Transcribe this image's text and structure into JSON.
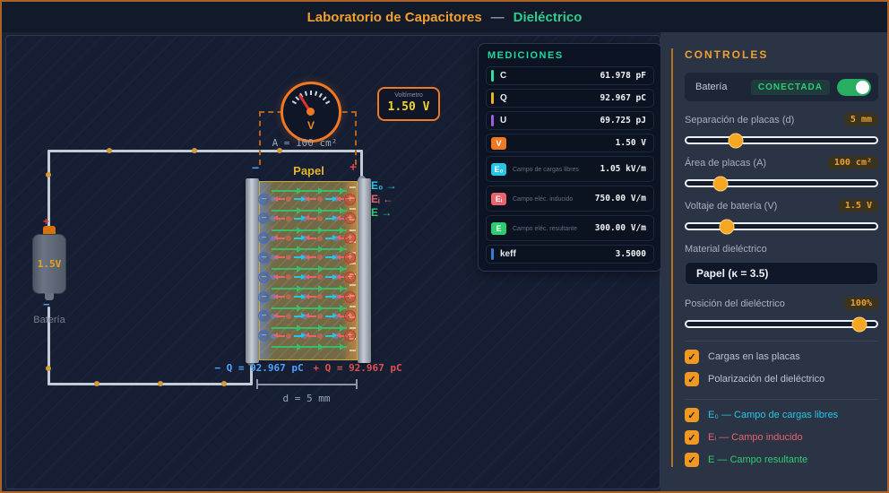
{
  "header": {
    "title_main": "Laboratorio de Capacitores",
    "separator": "—",
    "title_accent": "Dieléctrico"
  },
  "canvas": {
    "voltmeter": {
      "label": "Voltímetro",
      "value": "1.50 V",
      "gauge_label": "V"
    },
    "area_label": "A = 100 cm²",
    "dielectric_label": "Papel",
    "legend": [
      {
        "text": "E₀ →",
        "color": "#29c5e6"
      },
      {
        "text": "Eᵢ ←",
        "color": "#e8636e"
      },
      {
        "text": "E →",
        "color": "#2ecc71"
      }
    ],
    "battery": {
      "value": "1.5V",
      "label": "Batería",
      "plus": "+",
      "minus": "−"
    },
    "plate_signs": {
      "neg": "−",
      "pos": "+"
    },
    "charge_labels": {
      "neg": "− Q = 92.967 pC",
      "pos": "+ Q = 92.967 pC"
    },
    "distance_label": "d = 5 mm",
    "plate_charges_per_side": 8,
    "dipole_rows": 8,
    "field_lines": 9,
    "induced_dashes": 16
  },
  "measurements": {
    "title": "MEDICIONES",
    "rows": [
      {
        "label": "C",
        "value": "61.978 pF",
        "accent": "#2de0a0",
        "style": "bracket"
      },
      {
        "label": "Q",
        "value": "92.967 pC",
        "accent": "#e6b820",
        "style": "bracket"
      },
      {
        "label": "U",
        "value": "69.725 pJ",
        "accent": "#a05ce6",
        "style": "bracket"
      },
      {
        "label": "V",
        "value": "1.50 V",
        "accent": "#f07820",
        "style": "badge"
      },
      {
        "label": "E₀",
        "sub": "Campo de cargas libres",
        "value": "1.05 kV/m",
        "accent": "#29c5e6",
        "style": "badge"
      },
      {
        "label": "Eᵢ",
        "sub": "Campo eléc. inducido",
        "value": "750.00 V/m",
        "accent": "#e8636e",
        "style": "badge"
      },
      {
        "label": "E",
        "sub": "Campo eléc. resultante",
        "value": "300.00 V/m",
        "accent": "#2ecc71",
        "style": "badge"
      },
      {
        "label": "keff",
        "value": "3.5000",
        "accent": "#3a7bd5",
        "style": "bracket"
      }
    ]
  },
  "controls": {
    "title": "CONTROLES",
    "battery_row": {
      "label": "Batería",
      "status": "CONECTADA",
      "toggle_on": true
    },
    "sliders": [
      {
        "label": "Separación de placas (d)",
        "value": "5 mm",
        "percent": 26
      },
      {
        "label": "Área de placas (A)",
        "value": "100 cm²",
        "percent": 18
      },
      {
        "label": "Voltaje de batería (V)",
        "value": "1.5 V",
        "percent": 21
      }
    ],
    "material": {
      "label": "Material dieléctrico",
      "value": "Papel (κ = 3.5)"
    },
    "position_slider": {
      "label": "Posición del dieléctrico",
      "value": "100%",
      "percent": 91
    },
    "checkboxes": [
      {
        "label": "Cargas en las placas",
        "checked": true,
        "color": "#b8c2d0"
      },
      {
        "label": "Polarización del dieléctrico",
        "checked": true,
        "color": "#b8c2d0"
      }
    ],
    "field_checkboxes": [
      {
        "label": "E₀ — Campo de cargas libres",
        "checked": true,
        "color": "#29c5e6"
      },
      {
        "label": "Eᵢ — Campo inducido",
        "checked": true,
        "color": "#e8636e"
      },
      {
        "label": "E — Campo resultante",
        "checked": true,
        "color": "#2ecc71"
      }
    ],
    "check_glyph": "✓"
  }
}
